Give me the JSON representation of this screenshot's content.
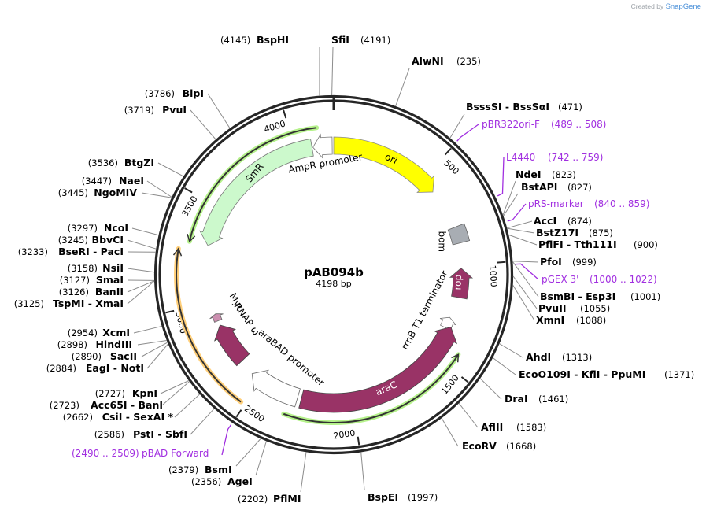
{
  "credit": {
    "prefix": "Created by",
    "brand": "SnapGene"
  },
  "plasmid": {
    "name": "pAB094b",
    "length_label": "4198 bp",
    "length": 4198
  },
  "ticks": [
    {
      "bp": 500,
      "label": "500"
    },
    {
      "bp": 1000,
      "label": "1000"
    },
    {
      "bp": 1500,
      "label": "1500"
    },
    {
      "bp": 2000,
      "label": "2000"
    },
    {
      "bp": 2500,
      "label": "2500"
    },
    {
      "bp": 3000,
      "label": "3000"
    },
    {
      "bp": 3500,
      "label": "3500"
    },
    {
      "bp": 4000,
      "label": "4000"
    }
  ],
  "features": [
    {
      "name": "ori",
      "color": "#ffff00"
    },
    {
      "name": "AmpR promoter",
      "color": "#ffffff"
    },
    {
      "name": "SmR",
      "color": "#ccf9cc"
    },
    {
      "name": "bom",
      "color": "#a8adb3"
    },
    {
      "name": "rop",
      "color": "#993366"
    },
    {
      "name": "rrnB T1 terminator",
      "color": "#ffffff"
    },
    {
      "name": "araC",
      "color": "#993366"
    },
    {
      "name": "araBAD promoter",
      "color": "#ffffff"
    },
    {
      "name": "RNAP ω",
      "color": "#993366"
    },
    {
      "name": "Myc",
      "color": "#cc8fb0"
    }
  ],
  "sites": {
    "top": [
      {
        "pos": "(4145)",
        "name": "BspHI"
      },
      {
        "pos": "(4191)",
        "name": "SfiI"
      },
      {
        "pos": "(235)",
        "name": "AlwNI"
      }
    ],
    "right": [
      {
        "name": "BsssSI  - BssSαI",
        "pos": "(471)"
      },
      {
        "name": "NdeI",
        "pos": "(823)"
      },
      {
        "name": "BstAPI",
        "pos": "(827)"
      },
      {
        "name": "AccI",
        "pos": "(874)"
      },
      {
        "name": "BstZ17I",
        "pos": "(875)"
      },
      {
        "name": "PflFI  - Tth111I",
        "pos": "(900)"
      },
      {
        "name": "PfoI",
        "pos": "(999)"
      },
      {
        "name": "BsmBI  - Esp3I",
        "pos": "(1001)"
      },
      {
        "name": "PvuII",
        "pos": "(1055)"
      },
      {
        "name": "XmnI",
        "pos": "(1088)"
      },
      {
        "name": "AhdI",
        "pos": "(1313)"
      },
      {
        "name": "EcoO109I  - KflI  - PpuMI",
        "pos": "(1371)"
      },
      {
        "name": "DraI",
        "pos": "(1461)"
      },
      {
        "name": "AflII",
        "pos": "(1583)"
      },
      {
        "name": "EcoRV",
        "pos": "(1668)"
      }
    ],
    "bottom": [
      {
        "name": "BspEI",
        "pos": "(1997)"
      },
      {
        "name": "PflMI",
        "pos": "(2202)"
      },
      {
        "name": "AgeI",
        "pos": "(2356)"
      },
      {
        "name": "BsmI",
        "pos": "(2379)"
      }
    ],
    "left": [
      {
        "pos": "(2586)",
        "name": "PstI  - SbfI"
      },
      {
        "pos": "(2662)",
        "name": "CsiI  - SexAI *"
      },
      {
        "pos": "(2723)",
        "name": "Acc65I  - BanI"
      },
      {
        "pos": "(2727)",
        "name": "KpnI"
      },
      {
        "pos": "(2884)",
        "name": "EagI  - NotI"
      },
      {
        "pos": "(2890)",
        "name": "SacII"
      },
      {
        "pos": "(2898)",
        "name": "HindIII"
      },
      {
        "pos": "(2954)",
        "name": "XcmI"
      },
      {
        "pos": "(3125)",
        "name": "TspMI  - XmaI"
      },
      {
        "pos": "(3126)",
        "name": "BanII"
      },
      {
        "pos": "(3127)",
        "name": "SmaI"
      },
      {
        "pos": "(3158)",
        "name": "NsiI"
      },
      {
        "pos": "(3233)",
        "name": "BseRI  - PacI"
      },
      {
        "pos": "(3245)",
        "name": "BbvCI"
      },
      {
        "pos": "(3297)",
        "name": "NcoI"
      },
      {
        "pos": "(3445)",
        "name": "NgoMIV"
      },
      {
        "pos": "(3447)",
        "name": "NaeI"
      },
      {
        "pos": "(3536)",
        "name": "BtgZI"
      },
      {
        "pos": "(3719)",
        "name": "PvuI"
      },
      {
        "pos": "(3786)",
        "name": "BlpI"
      }
    ]
  },
  "primers": [
    {
      "name": "pBR322ori-F",
      "range": "(489 .. 508)"
    },
    {
      "name": "L4440",
      "range": "(742 .. 759)"
    },
    {
      "name": "pRS-marker",
      "range": "(840 .. 859)"
    },
    {
      "name": "pGEX 3'",
      "range": "(1000 .. 1022)"
    },
    {
      "name": "pBAD Forward",
      "range": "(2490 .. 2509)"
    }
  ]
}
